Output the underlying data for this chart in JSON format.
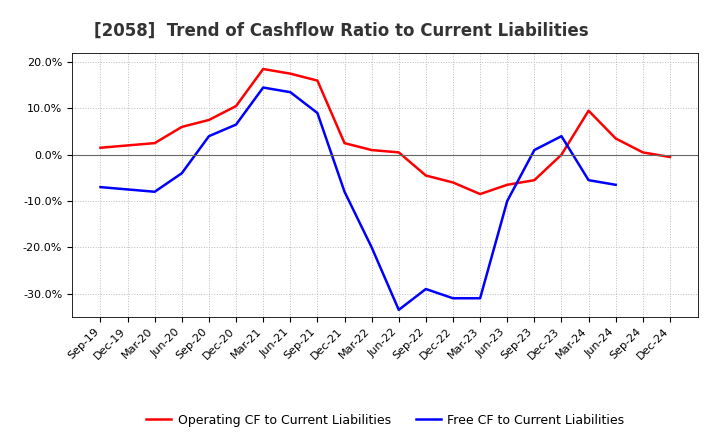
{
  "title": "[2058]  Trend of Cashflow Ratio to Current Liabilities",
  "x_labels": [
    "Sep-19",
    "Dec-19",
    "Mar-20",
    "Jun-20",
    "Sep-20",
    "Dec-20",
    "Mar-21",
    "Jun-21",
    "Sep-21",
    "Dec-21",
    "Mar-22",
    "Jun-22",
    "Sep-22",
    "Dec-22",
    "Mar-23",
    "Jun-23",
    "Sep-23",
    "Dec-23",
    "Mar-24",
    "Jun-24",
    "Sep-24",
    "Dec-24"
  ],
  "operating_cf": [
    1.5,
    2.0,
    2.5,
    6.0,
    7.5,
    10.5,
    18.5,
    17.5,
    16.0,
    2.5,
    1.0,
    0.5,
    -4.5,
    -6.0,
    -8.5,
    -6.5,
    -5.5,
    0.0,
    9.5,
    3.5,
    0.5,
    -0.5
  ],
  "free_cf": [
    -7.0,
    -7.5,
    -8.0,
    -4.0,
    4.0,
    6.5,
    14.5,
    13.5,
    9.0,
    -8.0,
    -20.0,
    -33.5,
    -29.0,
    -31.0,
    -31.0,
    -10.0,
    1.0,
    4.0,
    -5.5,
    -6.5,
    null,
    null
  ],
  "operating_cf_color": "#FF0000",
  "free_cf_color": "#0000FF",
  "ylim": [
    -35,
    22
  ],
  "yticks": [
    -30,
    -20,
    -10,
    0,
    10,
    20
  ],
  "ytick_labels": [
    "-30.0%",
    "-20.0%",
    "-10.0%",
    "0.0%",
    "10.0%",
    "20.0%"
  ],
  "background_color": "#FFFFFF",
  "grid_color": "#BBBBBB",
  "legend_op": "Operating CF to Current Liabilities",
  "legend_free": "Free CF to Current Liabilities",
  "title_fontsize": 12,
  "tick_fontsize": 8,
  "legend_fontsize": 9
}
